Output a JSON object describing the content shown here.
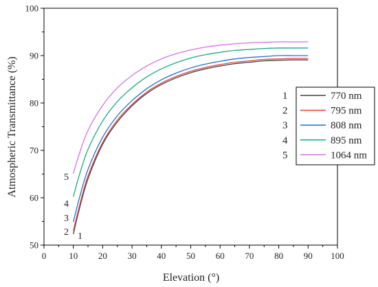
{
  "chart_data": {
    "type": "line",
    "xlabel": "Elevation (°)",
    "ylabel": "Atmospheric Transmittance (%)",
    "xlim": [
      0,
      100
    ],
    "ylim": [
      50,
      100
    ],
    "x_ticks": [
      "0",
      "10",
      "20",
      "30",
      "40",
      "50",
      "60",
      "70",
      "80",
      "90",
      "100"
    ],
    "y_ticks": [
      "50",
      "60",
      "70",
      "80",
      "90",
      "100"
    ],
    "grid": false,
    "legend_position": "right",
    "x": [
      10,
      12,
      15,
      20,
      25,
      30,
      35,
      40,
      45,
      50,
      55,
      60,
      65,
      70,
      75,
      80,
      85,
      90
    ],
    "series": [
      {
        "name": "770 nm",
        "number": "1",
        "color": "#404040",
        "values": [
          52.3,
          57.5,
          64.0,
          71.3,
          76.0,
          79.4,
          82.0,
          83.9,
          85.3,
          86.4,
          87.2,
          87.8,
          88.3,
          88.6,
          88.9,
          89.0,
          89.1,
          89.1
        ]
      },
      {
        "name": "795 nm",
        "number": "2",
        "color": "#e8413a",
        "values": [
          53.0,
          58.1,
          64.6,
          71.7,
          76.4,
          79.7,
          82.3,
          84.2,
          85.6,
          86.7,
          87.5,
          88.1,
          88.6,
          88.9,
          89.2,
          89.3,
          89.4,
          89.4
        ]
      },
      {
        "name": "808 nm",
        "number": "3",
        "color": "#1f6fd1",
        "values": [
          54.9,
          59.8,
          66.0,
          72.8,
          77.3,
          80.5,
          83.0,
          84.9,
          86.3,
          87.4,
          88.2,
          88.8,
          89.3,
          89.6,
          89.8,
          90.0,
          90.0,
          90.0
        ]
      },
      {
        "name": "895 nm",
        "number": "4",
        "color": "#18a882",
        "values": [
          60.2,
          64.7,
          70.2,
          76.2,
          80.3,
          83.2,
          85.5,
          87.2,
          88.5,
          89.5,
          90.2,
          90.7,
          91.1,
          91.3,
          91.5,
          91.6,
          91.6,
          91.6
        ]
      },
      {
        "name": "1064 nm",
        "number": "5",
        "color": "#d66fe3",
        "values": [
          65.1,
          69.2,
          74.2,
          79.5,
          83.2,
          85.8,
          87.8,
          89.3,
          90.4,
          91.2,
          91.8,
          92.2,
          92.5,
          92.7,
          92.8,
          92.9,
          92.9,
          92.9
        ]
      }
    ],
    "curve_labels": [
      "5",
      "4",
      "3",
      "2",
      "1"
    ]
  }
}
